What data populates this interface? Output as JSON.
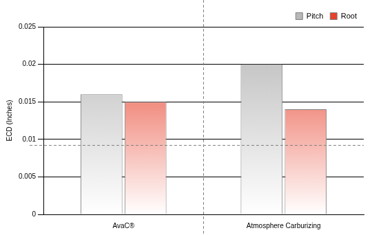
{
  "chart_data": {
    "type": "bar",
    "y_label": "ECD (Inches)",
    "categories": [
      "AvaC®",
      "Atmosphere Carburizing"
    ],
    "series": [
      {
        "name": "Pitch",
        "color": "#b8b8b8",
        "values": [
          0.016,
          0.02
        ]
      },
      {
        "name": "Root",
        "color": "#e8412c",
        "values": [
          0.015,
          0.014
        ]
      }
    ],
    "ylim": [
      0,
      0.025
    ],
    "yticks": [
      0,
      0.005,
      0.01,
      0.015,
      0.02,
      0.025
    ],
    "reference_line": 0.0092,
    "grid": true,
    "legend": "top-right"
  }
}
